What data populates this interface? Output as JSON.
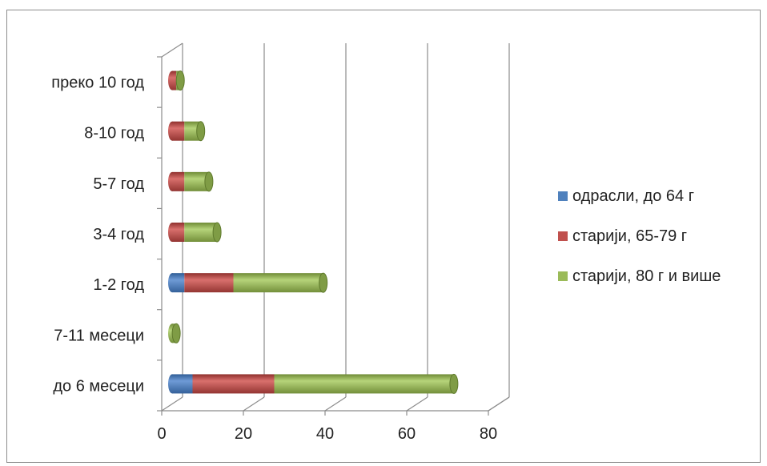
{
  "chart_data": {
    "type": "bar",
    "orientation": "horizontal",
    "stacked": true,
    "style_3d": "cylinder",
    "categories": [
      "до 6 месеци",
      "7-11 месеци",
      "1-2 год",
      "3-4 год",
      "5-7 год ",
      "8-10 год",
      "преко 10 год"
    ],
    "series": [
      {
        "name": "одрасли, до 64 г",
        "values": [
          5,
          0,
          3,
          0,
          0,
          0,
          0
        ]
      },
      {
        "name": "старији, 65-79 г",
        "values": [
          20,
          0,
          12,
          3,
          3,
          3,
          1
        ]
      },
      {
        "name": "старији, 80 г и више",
        "values": [
          44,
          1,
          22,
          8,
          6,
          4,
          1
        ]
      }
    ],
    "xlim": [
      0,
      80
    ],
    "x_ticks": [
      0,
      20,
      40,
      60,
      80
    ],
    "grid": "vertical",
    "legend": "right",
    "colors": {
      "одрасли, до 64 г": "#4F81BD",
      "старији, 65-79 г": "#C0504D",
      "старији, 80 г и више": "#9BBB59"
    }
  }
}
